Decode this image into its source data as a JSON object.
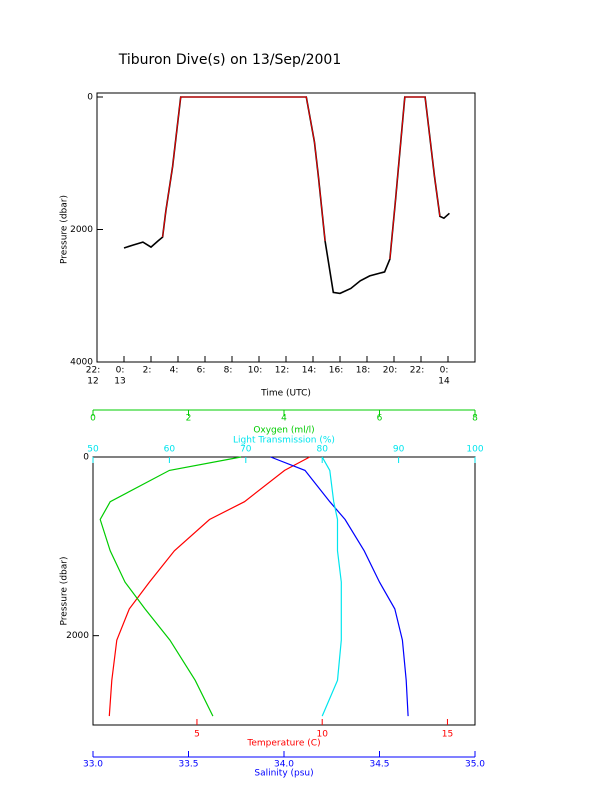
{
  "chart_data": [
    {
      "type": "line",
      "title": "Tiburon Dive(s) on 13/Sep/2001",
      "xlabel": "Time (UTC)",
      "ylabel": "Pressure (dbar)",
      "x": [
        0,
        0.66,
        1.4,
        2,
        2.5,
        2.86,
        3.1,
        3.6,
        4.2,
        13.5,
        14.1,
        14.4,
        14.9,
        15.5,
        16,
        16.8,
        17.5,
        18.2,
        19.3,
        19.7,
        20.1,
        20.8,
        22.3,
        23,
        23.4,
        23.7,
        24.1
      ],
      "series": [
        {
          "color": "#000000",
          "values": [
            2280,
            2235,
            2190,
            2265,
            2175,
            2115,
            1725,
            1050,
            0,
            0,
            675,
            1200,
            2175,
            2950,
            2965,
            2890,
            2775,
            2700,
            2640,
            2445,
            1575,
            0,
            0,
            1200,
            1800,
            1830,
            1755
          ]
        },
        {
          "color": "#ff0000",
          "values": [
            null,
            null,
            null,
            null,
            null,
            2115,
            1725,
            1050,
            0,
            0,
            675,
            1200,
            2175,
            null,
            null,
            null,
            null,
            null,
            null,
            2445,
            1575,
            0,
            0,
            1200,
            1800,
            null,
            null
          ]
        }
      ],
      "xlim": [
        -2,
        26
      ],
      "xticks": [
        {
          "value": -2,
          "label": "22:"
        },
        {
          "value": 0,
          "label": "0:"
        },
        {
          "value": 2,
          "label": "2:"
        },
        {
          "value": 4,
          "label": "4:"
        },
        {
          "value": 6,
          "label": "6:"
        },
        {
          "value": 8,
          "label": "8:"
        },
        {
          "value": 10,
          "label": "10:"
        },
        {
          "value": 12,
          "label": "12:"
        },
        {
          "value": 14,
          "label": "14:"
        },
        {
          "value": 16,
          "label": "16:"
        },
        {
          "value": 18,
          "label": "18:"
        },
        {
          "value": 20,
          "label": "20:"
        },
        {
          "value": 22,
          "label": "22:"
        },
        {
          "value": 24,
          "label": "0:"
        }
      ],
      "xtick_dates": [
        {
          "value": -2,
          "label": "12"
        },
        {
          "value": 0,
          "label": "13"
        },
        {
          "value": 24,
          "label": "14"
        }
      ],
      "ylim": [
        0,
        4000
      ],
      "y_inverted": true,
      "yticks": [
        0,
        2000,
        4000
      ]
    },
    {
      "type": "profile",
      "ylabel": "Pressure (dbar)",
      "ylim": [
        0,
        3000
      ],
      "y_inverted": true,
      "yticks": [
        0,
        2000
      ],
      "pressure": [
        0,
        150,
        500,
        700,
        1050,
        1400,
        1700,
        2050,
        2500,
        2900
      ],
      "axes": [
        {
          "label": "Temperature (C)",
          "color": "#ff0000",
          "position": "bottom-inner",
          "xlim": [
            0.85,
            16.1
          ],
          "xticks": [
            5,
            10,
            15
          ],
          "values": [
            9.5,
            8.5,
            6.9,
            5.5,
            4.1,
            3.1,
            2.3,
            1.8,
            1.6,
            1.5
          ]
        },
        {
          "label": "Salinity (psu)",
          "color": "#0000ff",
          "position": "bottom-outer",
          "xlim": [
            33,
            35
          ],
          "xticks": [
            {
              "value": 33,
              "label": "33.0"
            },
            {
              "value": 33.5,
              "label": "33.5"
            },
            {
              "value": 34,
              "label": "34.0"
            },
            {
              "value": 34.5,
              "label": "34.5"
            },
            {
              "value": 35,
              "label": "35.0"
            }
          ],
          "values": [
            33.93,
            34.11,
            34.24,
            34.32,
            34.42,
            34.5,
            34.58,
            34.62,
            34.64,
            34.65
          ]
        },
        {
          "label": "Oxygen (ml/l)",
          "color": "#00cc00",
          "position": "top-outer",
          "xlim": [
            0,
            8
          ],
          "xticks": [
            0,
            2,
            4,
            6,
            8
          ],
          "values": [
            3.1,
            1.6,
            0.36,
            0.15,
            0.36,
            0.67,
            1.09,
            1.61,
            2.14,
            2.51
          ]
        },
        {
          "label": "Light Transmission (%)",
          "color": "#00e5ee",
          "position": "top-inner",
          "xlim": [
            50,
            100
          ],
          "xticks": [
            50,
            60,
            70,
            80,
            90,
            100
          ],
          "values": [
            80,
            81,
            81.5,
            82,
            82,
            82.5,
            82.5,
            82.5,
            82,
            80
          ]
        }
      ]
    }
  ]
}
